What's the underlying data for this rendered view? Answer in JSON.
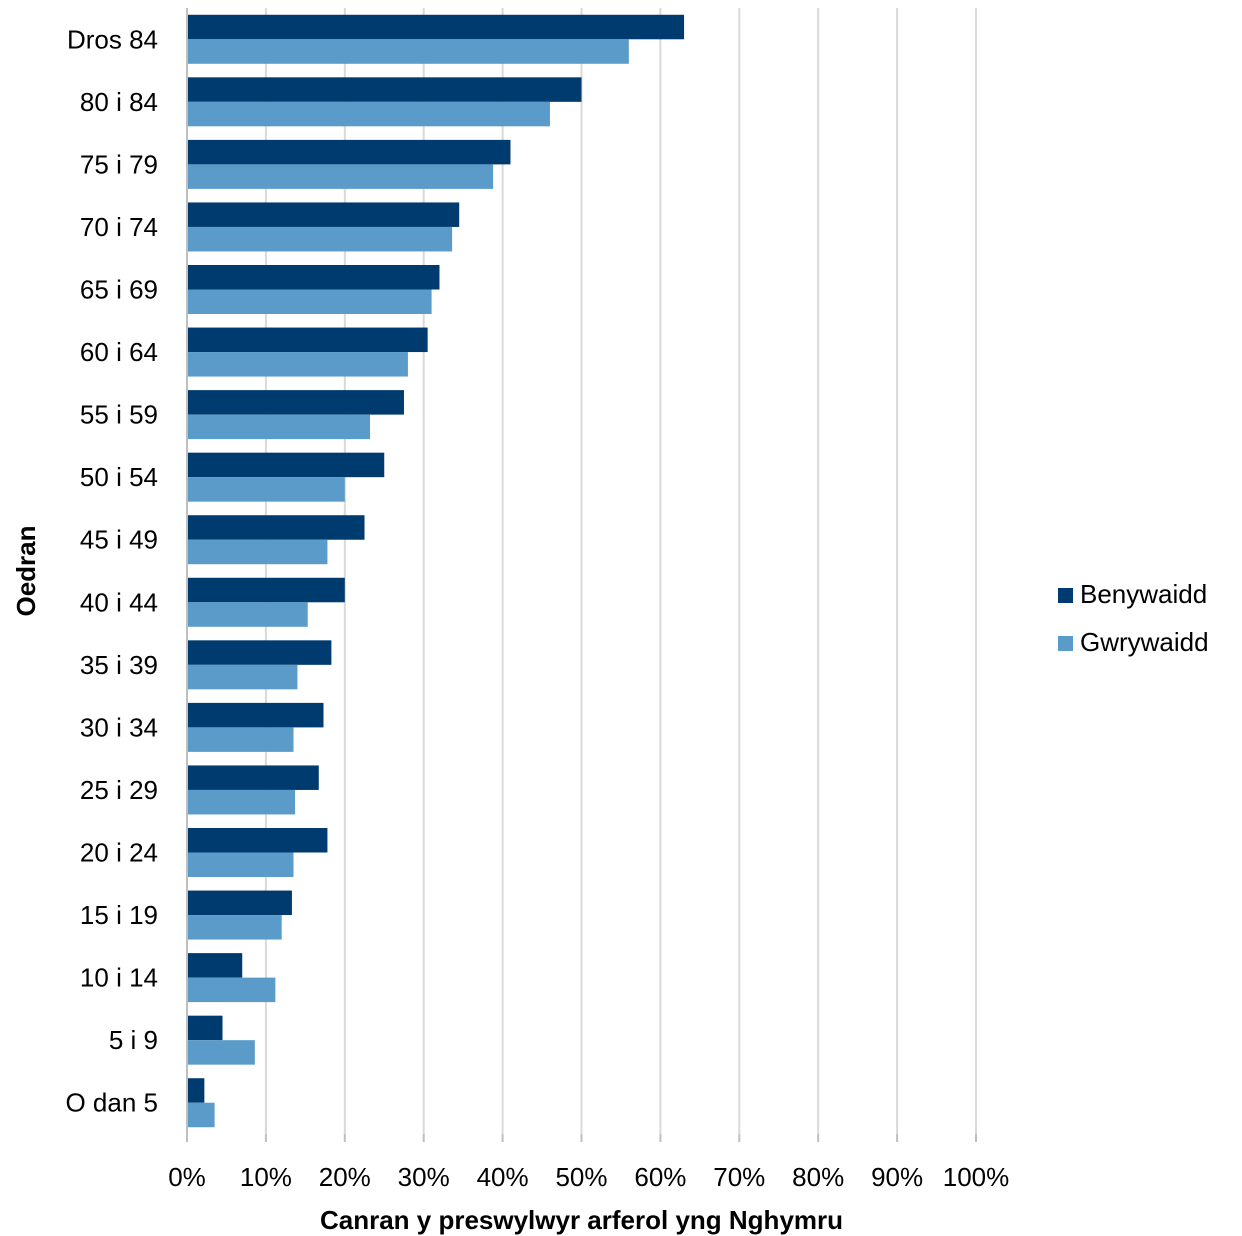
{
  "chart_data": {
    "type": "bar",
    "orientation": "horizontal",
    "categories": [
      "Dros 84",
      "80 i 84",
      "75 i 79",
      "70 i 74",
      "65 i 69",
      "60 i 64",
      "55 i 59",
      "50 i 54",
      "45 i 49",
      "40 i 44",
      "35 i 39",
      "30 i 34",
      "25 i 29",
      "20 i 24",
      "15 i 19",
      "10 i 14",
      "5 i 9",
      "O dan 5"
    ],
    "series": [
      {
        "name": "Benywaidd",
        "color": "#003b6f",
        "values": [
          63,
          50,
          41,
          34.5,
          32,
          30.5,
          27.5,
          25,
          22.5,
          20,
          18.3,
          17.3,
          16.7,
          17.8,
          13.3,
          7,
          4.5,
          2.2
        ]
      },
      {
        "name": "Gwrywaidd",
        "color": "#5b9bc9",
        "values": [
          56,
          46,
          38.8,
          33.6,
          31,
          28,
          23.2,
          20,
          17.8,
          15.3,
          14,
          13.5,
          13.7,
          13.5,
          12,
          11.2,
          8.6,
          3.5
        ]
      }
    ],
    "xlim": [
      0,
      100
    ],
    "xticks": [
      0,
      10,
      20,
      30,
      40,
      50,
      60,
      70,
      80,
      90,
      100
    ],
    "xtick_labels": [
      "0%",
      "10%",
      "20%",
      "30%",
      "40%",
      "50%",
      "60%",
      "70%",
      "80%",
      "90%",
      "100%"
    ],
    "xlabel": "Canran y preswylwyr arferol yng Nghymru",
    "ylabel": "Oedran",
    "grid": true,
    "legend_position": "right"
  }
}
